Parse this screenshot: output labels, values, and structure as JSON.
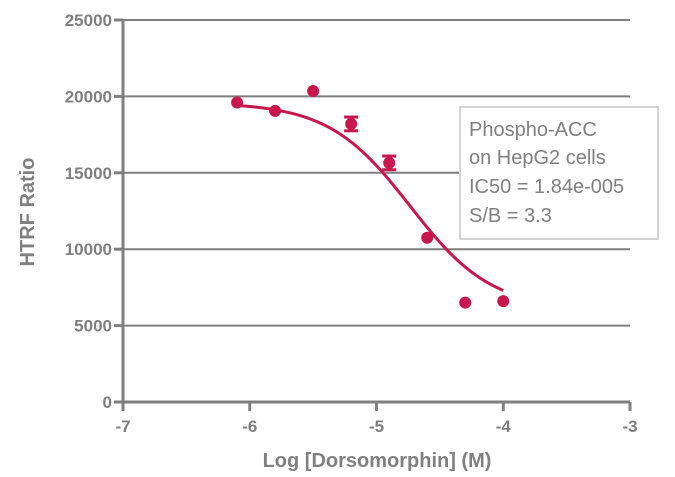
{
  "chart_data": {
    "type": "scatter",
    "xlabel": "Log [Dorsomorphin] (M)",
    "ylabel": "HTRF Ratio",
    "xlim": [
      -7,
      -3
    ],
    "ylim": [
      0,
      25000
    ],
    "xticks": [
      -7,
      -6,
      -5,
      -4,
      -3
    ],
    "yticks": [
      0,
      5000,
      10000,
      15000,
      20000,
      25000
    ],
    "xtick_labels": [
      "-7",
      "-6",
      "-5",
      "-4",
      "-3"
    ],
    "ytick_labels": [
      "0",
      "5000",
      "10000",
      "15000",
      "20000",
      "25000"
    ],
    "grid": "horizontal",
    "points": [
      {
        "x": -6.1,
        "y": 19600,
        "err": 0
      },
      {
        "x": -5.8,
        "y": 19050,
        "err": 0
      },
      {
        "x": -5.5,
        "y": 20350,
        "err": 0
      },
      {
        "x": -5.2,
        "y": 18200,
        "err": 450
      },
      {
        "x": -4.9,
        "y": 15650,
        "err": 450
      },
      {
        "x": -4.6,
        "y": 10750,
        "err": 0
      },
      {
        "x": -4.3,
        "y": 6500,
        "err": 0
      },
      {
        "x": -4.0,
        "y": 6600,
        "err": 0
      }
    ],
    "fit": {
      "model": "four-parameter logistic",
      "top": 19600,
      "bottom": 6050,
      "logIC50": -4.735,
      "hillslope": -1.35,
      "x_range": [
        -6.1,
        -4.0
      ]
    },
    "series_color": "#c8174c",
    "annotation": {
      "lines": [
        "Phospho-ACC",
        "on HepG2 cells",
        "IC50 = 1.84e-005",
        "S/B =  3.3"
      ],
      "placement": "right"
    }
  }
}
